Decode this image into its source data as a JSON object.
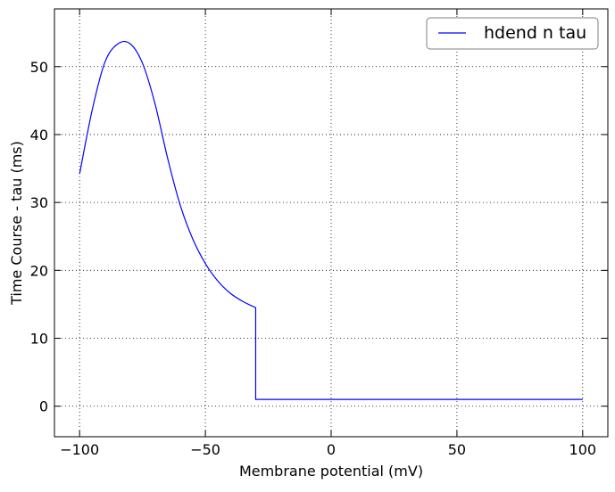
{
  "chart_data": {
    "type": "line",
    "title": "",
    "xlabel": "Membrane potential (mV)",
    "ylabel": "Time Course - tau (ms)",
    "xlim": [
      -110,
      110
    ],
    "ylim": [
      -4.5,
      58.5
    ],
    "x_ticks": [
      -100,
      -50,
      0,
      50,
      100
    ],
    "x_tick_labels": [
      "−100",
      "−50",
      "0",
      "50",
      "100"
    ],
    "y_ticks": [
      0,
      10,
      20,
      30,
      40,
      50
    ],
    "y_tick_labels": [
      "0",
      "10",
      "20",
      "30",
      "40",
      "50"
    ],
    "grid": true,
    "legend_position": "top-right",
    "series_color": "#0000ff",
    "series": [
      {
        "name": "hdend n tau",
        "x": [
          -100,
          -95,
          -90,
          -85,
          -80,
          -75,
          -70,
          -65,
          -60,
          -55,
          -50,
          -45,
          -40,
          -35,
          -30,
          -30,
          0,
          50,
          100
        ],
        "y": [
          34.2,
          43.6,
          50.6,
          53.3,
          53.4,
          50.5,
          44.5,
          36.5,
          29.6,
          24.6,
          21.0,
          18.4,
          16.6,
          15.4,
          14.5,
          1.0,
          1.0,
          1.0,
          1.0
        ]
      }
    ]
  }
}
